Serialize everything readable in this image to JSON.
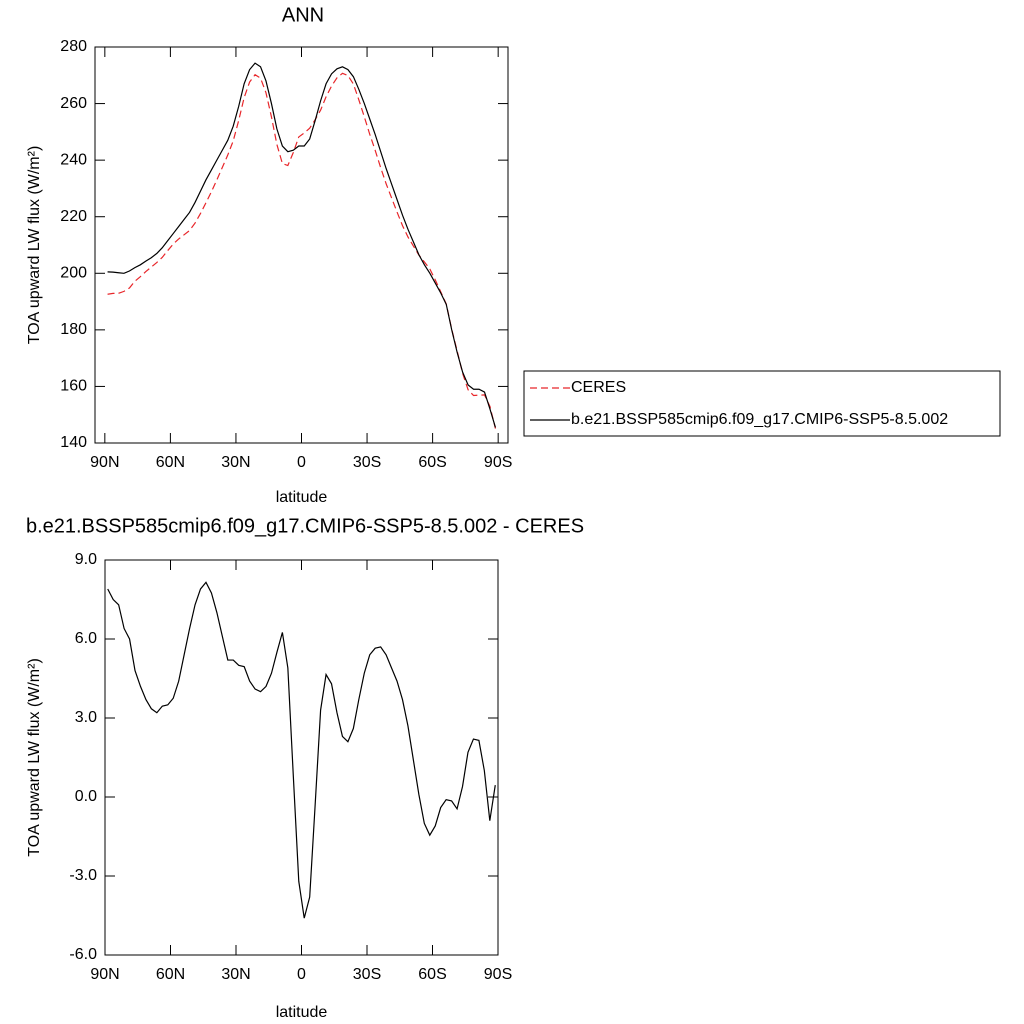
{
  "chart_data": [
    {
      "type": "line",
      "title": "ANN",
      "x_label": "latitude",
      "y_label": "TOA upward LW flux (W/m²)",
      "x": [
        88.75,
        86.25,
        83.75,
        81.25,
        78.75,
        76.25,
        73.75,
        71.25,
        68.75,
        66.25,
        63.75,
        61.25,
        58.75,
        56.25,
        53.75,
        51.25,
        48.75,
        46.25,
        43.75,
        41.25,
        38.75,
        36.25,
        33.75,
        31.25,
        28.75,
        26.25,
        23.75,
        21.25,
        18.75,
        16.25,
        13.75,
        11.25,
        8.75,
        6.25,
        3.75,
        1.25,
        -1.25,
        -3.75,
        -6.25,
        -8.75,
        -11.25,
        -13.75,
        -16.25,
        -18.75,
        -21.25,
        -23.75,
        -26.25,
        -28.75,
        -31.25,
        -33.75,
        -36.25,
        -38.75,
        -41.25,
        -43.75,
        -46.25,
        -48.75,
        -51.25,
        -53.75,
        -56.25,
        -58.75,
        -61.25,
        -63.75,
        -66.25,
        -68.75,
        -71.25,
        -73.75,
        -76.25,
        -78.75,
        -81.25,
        -83.75,
        -86.25,
        -88.75
      ],
      "series": [
        {
          "name": "CERES",
          "color": "#e8262a",
          "line_style": "dashed",
          "values": [
            192.6,
            192.9,
            192.9,
            193.6,
            194.8,
            197.2,
            198.8,
            200.6,
            202.2,
            203.8,
            205.6,
            208.0,
            210.3,
            212.1,
            213.6,
            215.1,
            217.7,
            221.1,
            224.9,
            228.8,
            233.0,
            237.4,
            241.8,
            246.8,
            254.0,
            262.1,
            267.6,
            270.2,
            269.0,
            263.8,
            255.3,
            245.5,
            238.8,
            238.1,
            242.7,
            248.2,
            249.6,
            251.3,
            254.3,
            257.7,
            262.4,
            266.2,
            269.1,
            270.7,
            269.9,
            266.9,
            261.3,
            255.3,
            249.1,
            243.4,
            237.3,
            231.6,
            226.6,
            221.6,
            216.8,
            212.8,
            209.6,
            206.4,
            204.0,
            201.5,
            197.6,
            193.4,
            189.1,
            180.2,
            172.5,
            164.6,
            158.8,
            156.8,
            156.9,
            157.0,
            152.9,
            145.1
          ]
        },
        {
          "name": "b.e21.BSSP585cmip6.f09_g17.CMIP6-SSP5-8.5.002",
          "color": "#000000",
          "line_style": "solid",
          "values": [
            200.5,
            200.4,
            200.2,
            200.0,
            200.8,
            202.0,
            203.0,
            204.3,
            205.5,
            207.0,
            209.0,
            211.5,
            214.0,
            216.5,
            219.0,
            221.5,
            225.0,
            229.0,
            233.0,
            236.5,
            240.0,
            243.5,
            247.0,
            252.0,
            259.0,
            267.0,
            272.0,
            274.3,
            273.0,
            268.0,
            260.0,
            251.0,
            245.0,
            243.0,
            243.5,
            245.0,
            245.0,
            247.5,
            254.0,
            261.0,
            267.0,
            270.5,
            272.3,
            273.0,
            272.0,
            269.5,
            265.0,
            260.0,
            254.5,
            249.0,
            243.0,
            237.0,
            231.5,
            226.0,
            220.5,
            215.5,
            211.0,
            206.5,
            203.0,
            200.0,
            196.5,
            193.0,
            189.0,
            180.0,
            172.0,
            165.0,
            160.5,
            159.0,
            159.0,
            158.0,
            152.0,
            145.5
          ]
        }
      ],
      "xlim": [
        94.5,
        -94.5
      ],
      "xticks": [
        {
          "value": 90,
          "label": "90N"
        },
        {
          "value": 60,
          "label": "60N"
        },
        {
          "value": 30,
          "label": "30N"
        },
        0,
        {
          "value": -30,
          "label": "30S"
        },
        {
          "value": -60,
          "label": "60S"
        },
        {
          "value": -90,
          "label": "90S"
        }
      ],
      "ylim": [
        140,
        280
      ],
      "yticks": [
        140,
        160,
        180,
        200,
        220,
        240,
        260,
        280
      ],
      "legend": "right"
    },
    {
      "type": "line",
      "title": "b.e21.BSSP585cmip6.f09_g17.CMIP6-SSP5-8.5.002 - CERES",
      "x_label": "latitude",
      "y_label": "TOA upward LW flux (W/m²)",
      "x": [
        88.75,
        86.25,
        83.75,
        81.25,
        78.75,
        76.25,
        73.75,
        71.25,
        68.75,
        66.25,
        63.75,
        61.25,
        58.75,
        56.25,
        53.75,
        51.25,
        48.75,
        46.25,
        43.75,
        41.25,
        38.75,
        36.25,
        33.75,
        31.25,
        28.75,
        26.25,
        23.75,
        21.25,
        18.75,
        16.25,
        13.75,
        11.25,
        8.75,
        6.25,
        3.75,
        1.25,
        -1.25,
        -3.75,
        -6.25,
        -8.75,
        -11.25,
        -13.75,
        -16.25,
        -18.75,
        -21.25,
        -23.75,
        -26.25,
        -28.75,
        -31.25,
        -33.75,
        -36.25,
        -38.75,
        -41.25,
        -43.75,
        -46.25,
        -48.75,
        -51.25,
        -53.75,
        -56.25,
        -58.75,
        -61.25,
        -63.75,
        -66.25,
        -68.75,
        -71.25,
        -73.75,
        -76.25,
        -78.75,
        -81.25,
        -83.75,
        -86.25,
        -88.75
      ],
      "series": [
        {
          "color": "#000000",
          "line_style": "solid",
          "values": [
            7.9,
            7.5,
            7.3,
            6.4,
            6.0,
            4.8,
            4.2,
            3.7,
            3.35,
            3.2,
            3.45,
            3.5,
            3.75,
            4.4,
            5.4,
            6.4,
            7.3,
            7.9,
            8.15,
            7.75,
            7.0,
            6.1,
            5.2,
            5.2,
            5.0,
            4.95,
            4.4,
            4.1,
            4.0,
            4.2,
            4.7,
            5.5,
            6.25,
            4.9,
            0.8,
            -3.2,
            -4.6,
            -3.8,
            -0.3,
            3.3,
            4.65,
            4.3,
            3.2,
            2.3,
            2.1,
            2.6,
            3.7,
            4.7,
            5.4,
            5.65,
            5.7,
            5.4,
            4.9,
            4.4,
            3.7,
            2.7,
            1.4,
            0.1,
            -1.0,
            -1.45,
            -1.1,
            -0.4,
            -0.1,
            -0.15,
            -0.45,
            0.4,
            1.7,
            2.2,
            2.15,
            1.0,
            -0.9,
            0.45
          ]
        }
      ],
      "xlim": [
        90,
        -90
      ],
      "xticks": [
        {
          "value": 90,
          "label": "90N"
        },
        {
          "value": 60,
          "label": "60N"
        },
        {
          "value": 30,
          "label": "30N"
        },
        0,
        {
          "value": -30,
          "label": "30S"
        },
        {
          "value": -60,
          "label": "60S"
        },
        {
          "value": -90,
          "label": "90S"
        }
      ],
      "ylim": [
        -6,
        9
      ],
      "yticks": [
        {
          "value": -6,
          "label": "-6.0"
        },
        {
          "value": -3,
          "label": "-3.0"
        },
        {
          "value": 0,
          "label": "0.0"
        },
        {
          "value": 3,
          "label": "3.0"
        },
        {
          "value": 6,
          "label": "6.0"
        },
        {
          "value": 9,
          "label": "9.0"
        }
      ]
    }
  ]
}
